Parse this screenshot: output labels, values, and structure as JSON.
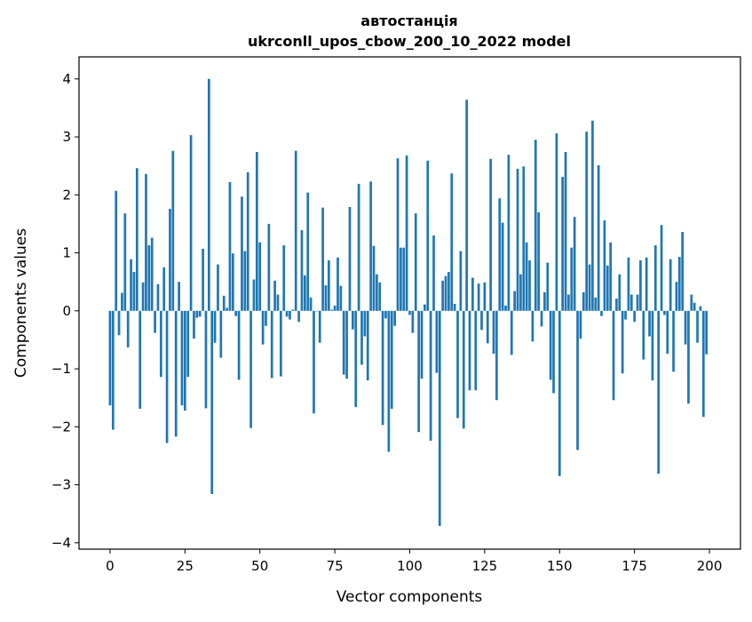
{
  "chart_data": {
    "type": "bar",
    "title": "автостанція",
    "subtitle": "ukrconll_upos_cbow_200_10_2022 model",
    "xlabel": "Vector components",
    "ylabel": "Components values",
    "xlim": [
      -10.35,
      210.35
    ],
    "ylim": [
      -4.11,
      4.38
    ],
    "xticks": [
      0,
      25,
      50,
      75,
      100,
      125,
      150,
      175,
      200
    ],
    "yticks": [
      -4,
      -3,
      -2,
      -1,
      0,
      1,
      2,
      3,
      4
    ],
    "ytick_labels": [
      "−4",
      "−3",
      "−2",
      "−1",
      "0",
      "1",
      "2",
      "3",
      "4"
    ],
    "grid": false,
    "color": "#1f77b4",
    "values": [
      -1.63,
      -2.05,
      2.07,
      -0.42,
      0.31,
      1.68,
      -0.63,
      0.89,
      0.67,
      2.46,
      -1.69,
      0.49,
      2.36,
      1.13,
      1.26,
      -0.38,
      0.46,
      -1.14,
      0.75,
      -2.28,
      1.76,
      2.76,
      -2.17,
      0.5,
      -1.63,
      -1.72,
      -1.14,
      3.03,
      -0.48,
      -0.12,
      -0.1,
      1.07,
      -1.68,
      4.0,
      -3.16,
      -0.55,
      0.8,
      -0.81,
      0.26,
      0.05,
      2.22,
      0.99,
      -0.09,
      -1.19,
      1.97,
      1.03,
      2.39,
      -2.02,
      0.54,
      2.74,
      1.18,
      -0.58,
      -0.26,
      1.5,
      -1.16,
      0.52,
      0.28,
      -1.13,
      1.13,
      -0.1,
      -0.15,
      0.02,
      2.76,
      -0.19,
      1.39,
      0.61,
      2.04,
      0.23,
      -1.77,
      -0.01,
      -0.55,
      1.78,
      0.44,
      0.87,
      0.02,
      0.09,
      0.92,
      0.43,
      -1.1,
      -1.17,
      1.79,
      -0.32,
      -1.66,
      2.19,
      -0.93,
      -0.44,
      -1.2,
      2.23,
      1.12,
      0.63,
      0.49,
      -1.97,
      -0.13,
      -2.43,
      -1.69,
      -0.26,
      2.63,
      1.09,
      1.09,
      2.68,
      -0.07,
      -0.38,
      1.68,
      -2.09,
      -1.17,
      0.11,
      2.59,
      -2.24,
      1.3,
      -1.07,
      -3.71,
      0.52,
      0.6,
      0.67,
      2.37,
      0.12,
      -1.85,
      1.03,
      -2.03,
      3.64,
      -1.37,
      0.57,
      -1.37,
      0.47,
      -0.33,
      0.49,
      -0.56,
      2.62,
      -0.74,
      -1.54,
      1.94,
      1.52,
      0.09,
      2.69,
      -0.76,
      0.34,
      2.45,
      0.63,
      2.49,
      1.18,
      0.87,
      -0.53,
      2.95,
      1.7,
      -0.27,
      0.32,
      0.83,
      -1.19,
      -1.42,
      3.06,
      -2.85,
      2.31,
      2.74,
      0.28,
      1.09,
      1.62,
      -2.4,
      -0.48,
      0.32,
      3.09,
      0.8,
      3.28,
      0.23,
      2.51,
      -0.09,
      1.56,
      0.78,
      1.18,
      -1.54,
      0.21,
      0.63,
      -1.08,
      -0.15,
      0.92,
      0.28,
      -0.19,
      0.28,
      0.87,
      -0.84,
      0.92,
      -0.44,
      -1.2,
      1.13,
      -2.81,
      1.48,
      -0.07,
      -0.74,
      0.89,
      -1.05,
      0.5,
      0.93,
      1.36,
      -0.58,
      -1.6,
      0.28,
      0.14,
      -0.55,
      0.08,
      -1.83,
      -0.75
    ]
  }
}
